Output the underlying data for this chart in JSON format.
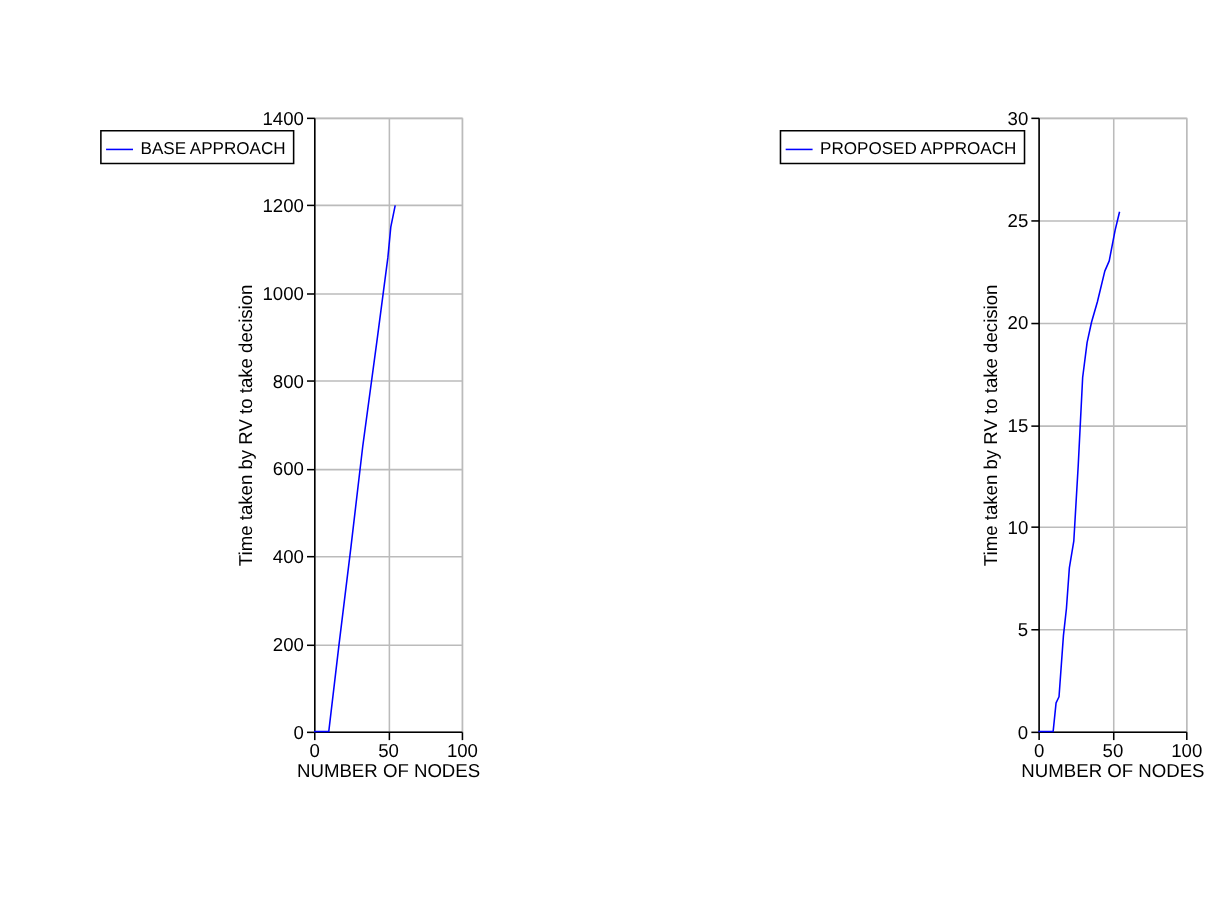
{
  "chart_data": [
    {
      "type": "line",
      "xlabel": "NUMBER OF NODES",
      "ylabel": "Time taken by RV to take decision",
      "xlim": [
        0,
        100
      ],
      "xticks": [
        0,
        50,
        100
      ],
      "ylim": [
        0,
        1400
      ],
      "yticks": [
        0,
        200,
        400,
        600,
        800,
        1000,
        1200,
        1400
      ],
      "grid": true,
      "legend": "top left",
      "series": [
        {
          "name": "BASE APPROACH",
          "color": "#0000ff",
          "x": [
            0,
            10,
            17,
            25,
            33,
            43,
            50,
            52,
            55
          ],
          "values": [
            0,
            0,
            200,
            420,
            650,
            900,
            1080,
            1150,
            1200
          ]
        }
      ]
    },
    {
      "type": "line",
      "xlabel": "NUMBER OF NODES",
      "ylabel": "Time taken by RV to take decision",
      "xlim": [
        0,
        100
      ],
      "xticks": [
        0,
        50,
        100
      ],
      "ylim": [
        0,
        30
      ],
      "yticks": [
        0,
        5,
        10,
        15,
        20,
        25,
        30
      ],
      "grid": true,
      "legend": "top left",
      "series": [
        {
          "name": "PROPOSED APPROACH",
          "color": "#0000ff",
          "x": [
            0,
            10,
            12,
            14,
            17,
            19,
            21,
            24,
            27,
            30,
            33,
            36,
            40,
            45,
            48,
            52,
            55
          ],
          "values": [
            0,
            0,
            1.4,
            1.7,
            4.7,
            6,
            8,
            9.3,
            13,
            17.3,
            19,
            20,
            21,
            22.5,
            23,
            24.5,
            25.4
          ]
        }
      ]
    }
  ]
}
